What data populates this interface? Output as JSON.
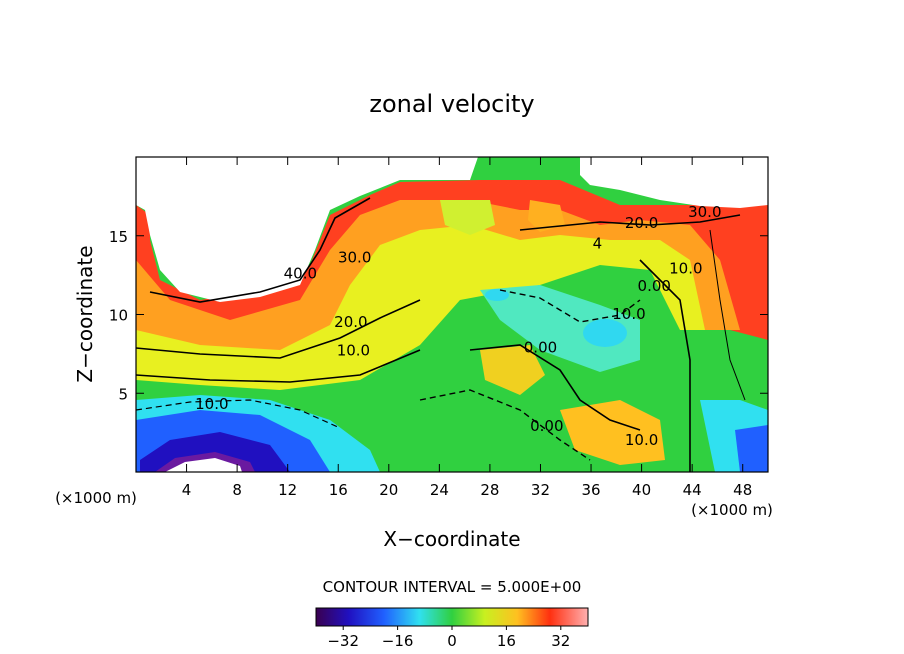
{
  "chart_data": {
    "type": "heatmap",
    "title": "zonal velocity",
    "xlabel": "X−coordinate",
    "ylabel": "Z−coordinate",
    "x_unit_left": "(×1000 m)",
    "x_unit_right": "(×1000 m)",
    "xlim": [
      0,
      50
    ],
    "ylim": [
      0,
      20
    ],
    "x_ticks": [
      4,
      8,
      12,
      16,
      20,
      24,
      28,
      32,
      36,
      40,
      44,
      48
    ],
    "y_ticks": [
      5,
      10,
      15
    ],
    "contour_interval_text": "CONTOUR INTERVAL = 5.000E+00",
    "contour_labels": [
      {
        "text": "40.0",
        "x": 13,
        "y": 12.3
      },
      {
        "text": "30.0",
        "x": 17.3,
        "y": 13.3
      },
      {
        "text": "30.0",
        "x": 45,
        "y": 16.2
      },
      {
        "text": "20.0",
        "x": 17,
        "y": 9.2
      },
      {
        "text": "20.0",
        "x": 40,
        "y": 15.5
      },
      {
        "text": "10.0",
        "x": 17.2,
        "y": 7.4
      },
      {
        "text": "10.0",
        "x": 6,
        "y": 4.0
      },
      {
        "text": "10.0",
        "x": 43.5,
        "y": 12.6
      },
      {
        "text": "10.0",
        "x": 39,
        "y": 9.7
      },
      {
        "text": "10.0",
        "x": 40,
        "y": 1.7
      },
      {
        "text": "0.00",
        "x": 32,
        "y": 7.6
      },
      {
        "text": "0.00",
        "x": 41,
        "y": 11.5
      },
      {
        "text": "0.00",
        "x": 32.5,
        "y": 2.6
      },
      {
        "text": "4",
        "x": 36.5,
        "y": 14.2
      }
    ],
    "colorbar": {
      "min": -40,
      "max": 40,
      "ticks": [
        -32,
        -16,
        0,
        16,
        32
      ],
      "tick_labels": [
        "−32",
        "−16",
        "0",
        "16",
        "32"
      ],
      "colormap": "rainbow"
    }
  }
}
